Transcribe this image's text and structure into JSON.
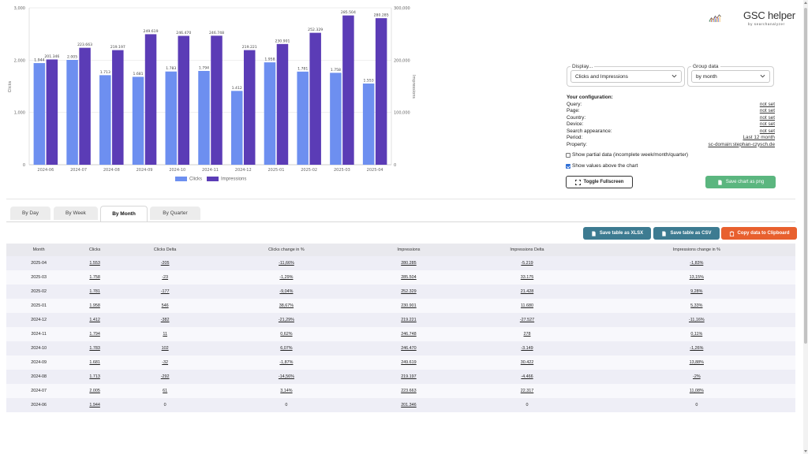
{
  "chart_data": {
    "type": "bar",
    "categories": [
      "2024-06",
      "2024-07",
      "2024-08",
      "2024-09",
      "2024-10",
      "2024-11",
      "2024-12",
      "2025-01",
      "2025-02",
      "2025-03",
      "2025-04"
    ],
    "series": [
      {
        "name": "Clicks",
        "axis": "left",
        "color": "#6d8ff0",
        "values": [
          1944,
          2005,
          1713,
          1681,
          1783,
          1794,
          1412,
          1958,
          1781,
          1758,
          1553
        ],
        "labels": [
          "1.944",
          "2.005",
          "1.713",
          "1.681",
          "1.783",
          "1.794",
          "1.412",
          "1.958",
          "1.781",
          "1.758",
          "1.553"
        ]
      },
      {
        "name": "Impressions",
        "axis": "right",
        "color": "#5b3cb6",
        "values": [
          201346,
          223663,
          219197,
          249619,
          246470,
          246748,
          219221,
          230901,
          252329,
          285504,
          280285
        ],
        "labels": [
          "201.346",
          "223.663",
          "219.197",
          "249.619",
          "246.470",
          "246.748",
          "219.221",
          "230.901",
          "252.329",
          "285.504",
          "280.285"
        ]
      }
    ],
    "ylim_left": [
      0,
      3000
    ],
    "ylim_right": [
      0,
      300000
    ],
    "yticks_left": [
      "0",
      "1,000",
      "2,000",
      "3,000"
    ],
    "yticks_right": [
      "0",
      "100,000",
      "200,000",
      "300,000"
    ],
    "ylabel_left": "Clicks",
    "ylabel_right": "Impressions",
    "grid": true,
    "legend_position": "bottom"
  },
  "logo": {
    "title": "GSC helper",
    "subtitle": "by searchanalyzer"
  },
  "display": {
    "legend": "Display...",
    "value": "Clicks and Impressions"
  },
  "group": {
    "legend": "Group data",
    "value": "by month"
  },
  "config": {
    "title": "Your configuration:",
    "rows": [
      {
        "label": "Query:",
        "value": "not set"
      },
      {
        "label": "Page:",
        "value": "not set"
      },
      {
        "label": "Country:",
        "value": "not set"
      },
      {
        "label": "Device:",
        "value": "not set"
      },
      {
        "label": "Search appearance:",
        "value": "not set"
      },
      {
        "label": "Period:",
        "value": "Last 12 month"
      },
      {
        "label": "Property:",
        "value": "sc-domain:stephan-czysch.de"
      }
    ]
  },
  "options": {
    "partial": {
      "label": "Show partial data (incomplete week/month/quarter)",
      "checked": false
    },
    "values_above": {
      "label": "Show values above the chart",
      "checked": true
    }
  },
  "buttons": {
    "fullscreen": "Toggle Fullscreen",
    "save_png": "Save chart as png",
    "xlsx": "Save table as XLSX",
    "csv": "Save table as CSV",
    "clipboard": "Copy data to Clipboard"
  },
  "tabs": [
    "By Day",
    "By Week",
    "By Month",
    "By Quarter"
  ],
  "active_tab": "By Month",
  "table": {
    "headers": [
      "Month",
      "Clicks",
      "Clicks Delta",
      "Clicks change in %",
      "Impressions",
      "Impressions Delta",
      "Impressions change in %"
    ],
    "rows": [
      [
        "2025-04",
        "1.553",
        "-205",
        "-11,66%",
        "280.285",
        "-5.219",
        "-1,83%"
      ],
      [
        "2025-03",
        "1.758",
        "-23",
        "-1,29%",
        "285.504",
        "33.175",
        "13,15%"
      ],
      [
        "2025-02",
        "1.781",
        "-177",
        "-9,04%",
        "252.329",
        "21.428",
        "9,28%"
      ],
      [
        "2025-01",
        "1.958",
        "546",
        "38,67%",
        "230.901",
        "11.680",
        "5,33%"
      ],
      [
        "2024-12",
        "1.412",
        "-382",
        "-21,29%",
        "219.221",
        "-27.527",
        "-11,16%"
      ],
      [
        "2024-11",
        "1.794",
        "11",
        "0,62%",
        "246.748",
        "278",
        "0,11%"
      ],
      [
        "2024-10",
        "1.783",
        "102",
        "6,07%",
        "246.470",
        "-3.149",
        "-1,26%"
      ],
      [
        "2024-09",
        "1.681",
        "-32",
        "-1,87%",
        "249.619",
        "30.422",
        "13,88%"
      ],
      [
        "2024-08",
        "1.713",
        "-292",
        "-14,56%",
        "219.197",
        "-4.466",
        "-2%"
      ],
      [
        "2024-07",
        "2.005",
        "61",
        "3,14%",
        "223.663",
        "22.317",
        "11,08%"
      ],
      [
        "2024-06",
        "1.944",
        "0",
        "0",
        "201.346",
        "0",
        "0"
      ]
    ]
  }
}
